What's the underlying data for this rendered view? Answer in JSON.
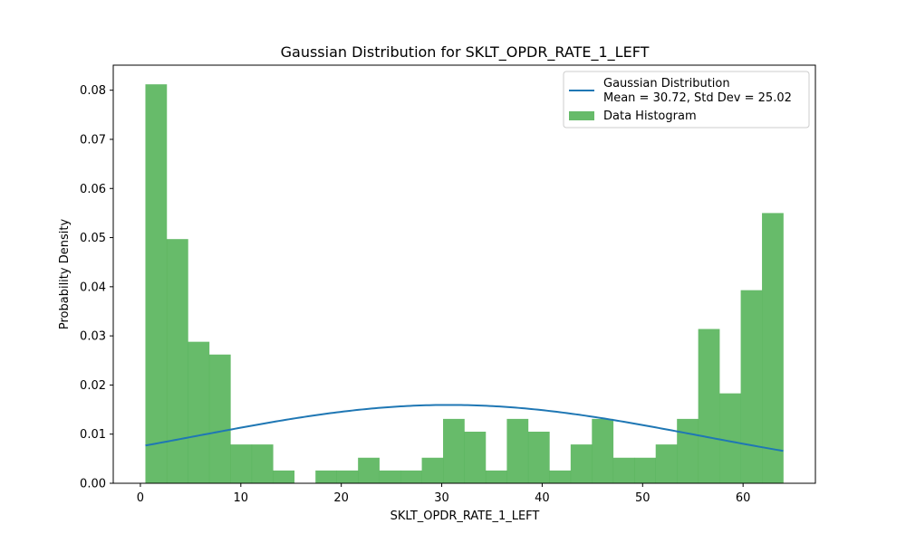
{
  "chart_data": {
    "type": "bar",
    "title": "Gaussian Distribution for SKLT_OPDR_RATE_1_LEFT",
    "xlabel": "SKLT_OPDR_RATE_1_LEFT",
    "ylabel": "Probability Density",
    "xlim": [
      -2.7,
      67.2
    ],
    "ylim": [
      0,
      0.0851
    ],
    "xticks": [
      0,
      10,
      20,
      30,
      40,
      50,
      60
    ],
    "xtick_labels": [
      "0",
      "10",
      "20",
      "30",
      "40",
      "50",
      "60"
    ],
    "yticks": [
      0,
      0.01,
      0.02,
      0.03,
      0.04,
      0.05,
      0.06,
      0.07,
      0.08
    ],
    "ytick_labels": [
      "0.00",
      "0.01",
      "0.02",
      "0.03",
      "0.04",
      "0.05",
      "0.06",
      "0.07",
      "0.08"
    ],
    "grid": false,
    "legend_position": "top-right",
    "histogram": {
      "name": "Data Histogram",
      "color": "#4caf50",
      "bin_edges": [
        0.5,
        2.617,
        4.733,
        6.85,
        8.967,
        11.083,
        13.2,
        15.317,
        17.433,
        19.55,
        21.667,
        23.783,
        25.9,
        28.017,
        30.133,
        32.25,
        34.367,
        36.483,
        38.6,
        40.717,
        42.833,
        44.95,
        47.067,
        49.183,
        51.3,
        53.417,
        55.533,
        57.65,
        59.767,
        61.883,
        64.0
      ],
      "values": [
        0.0812,
        0.0497,
        0.0288,
        0.0262,
        0.0079,
        0.0079,
        0.0026,
        0.0,
        0.0026,
        0.0026,
        0.0052,
        0.0026,
        0.0026,
        0.0052,
        0.0131,
        0.0105,
        0.0026,
        0.0131,
        0.0105,
        0.0026,
        0.0079,
        0.0131,
        0.0052,
        0.0052,
        0.0079,
        0.0131,
        0.0314,
        0.0183,
        0.0393,
        0.055
      ]
    },
    "gaussian": {
      "name": "Gaussian Distribution\nMean = 30.72, Std Dev = 25.02",
      "mean": 30.72,
      "std": 25.02,
      "x_range": [
        0.5,
        64.0
      ],
      "color": "#1f77b4"
    }
  }
}
